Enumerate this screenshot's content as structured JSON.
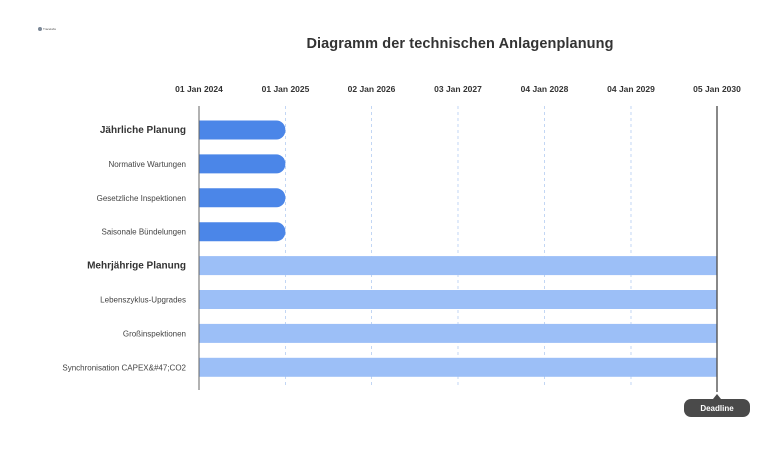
{
  "logo": {
    "text": "Tracelabs",
    "icon": "logo-icon"
  },
  "chart_data": {
    "type": "gantt",
    "title": "Diagramm der technischen Anlagenplanung",
    "x_ticks": [
      "01 Jan 2024",
      "01 Jan 2025",
      "02 Jan 2026",
      "03 Jan 2027",
      "04 Jan 2028",
      "04 Jan 2029",
      "05 Jan 2030"
    ],
    "xlim": [
      "2024-01-01",
      "2030-01-05"
    ],
    "grid": true,
    "rows": [
      {
        "label": "Jährliche Planung",
        "group": true,
        "start": "2024-01-01",
        "end": "2025-01-01",
        "color": "#4b86e8"
      },
      {
        "label": "Normative Wartungen",
        "group": false,
        "start": "2024-01-01",
        "end": "2025-01-01",
        "color": "#4b86e8"
      },
      {
        "label": "Gesetzliche Inspektionen",
        "group": false,
        "start": "2024-01-01",
        "end": "2025-01-01",
        "color": "#4b86e8"
      },
      {
        "label": "Saisonale Bündelungen",
        "group": false,
        "start": "2024-01-01",
        "end": "2025-01-01",
        "color": "#4b86e8"
      },
      {
        "label": "Mehrjährige Planung",
        "group": true,
        "start": "2024-01-01",
        "end": "2030-01-05",
        "color": "#9cbff7"
      },
      {
        "label": "Lebenszyklus-Upgrades",
        "group": false,
        "start": "2024-01-01",
        "end": "2030-01-05",
        "color": "#9cbff7"
      },
      {
        "label": "Großinspektionen",
        "group": false,
        "start": "2024-01-01",
        "end": "2030-01-05",
        "color": "#9cbff7"
      },
      {
        "label": "Synchronisation CAPEX&#47;CO2",
        "group": false,
        "start": "2024-01-01",
        "end": "2030-01-05",
        "color": "#9cbff7"
      }
    ],
    "milestone": {
      "label": "Deadline",
      "date": "2030-01-05"
    }
  }
}
